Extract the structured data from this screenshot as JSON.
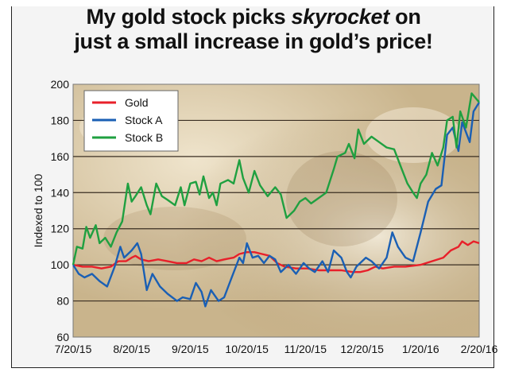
{
  "chart_data": {
    "type": "line",
    "title_line1": "My gold stock picks",
    "title_em": "skyrocket",
    "title_line1_end": "on",
    "title_line2": "just a small increase in gold’s price!",
    "xlabel": "",
    "ylabel": "Indexed to 100",
    "ylim": [
      60,
      200
    ],
    "yticks": [
      60,
      80,
      100,
      120,
      140,
      160,
      180,
      200
    ],
    "xticks": [
      {
        "day": 0,
        "label": "7/20/15"
      },
      {
        "day": 31,
        "label": "8/20/15"
      },
      {
        "day": 62,
        "label": "9/20/15"
      },
      {
        "day": 92,
        "label": "10/20/15"
      },
      {
        "day": 123,
        "label": "11/20/15"
      },
      {
        "day": 153,
        "label": "12/20/15"
      },
      {
        "day": 184,
        "label": "1/20/16"
      },
      {
        "day": 215,
        "label": "2/20/16"
      }
    ],
    "xlim_days": [
      0,
      215
    ],
    "grid": true,
    "legend_position": "top-left",
    "series": [
      {
        "name": "Gold",
        "color": "#e8202a",
        "points": [
          [
            0,
            100
          ],
          [
            5,
            99
          ],
          [
            10,
            99
          ],
          [
            15,
            98
          ],
          [
            20,
            99
          ],
          [
            24,
            102
          ],
          [
            28,
            102
          ],
          [
            31,
            104
          ],
          [
            33,
            105
          ],
          [
            36,
            103
          ],
          [
            40,
            102
          ],
          [
            45,
            103
          ],
          [
            50,
            102
          ],
          [
            55,
            101
          ],
          [
            60,
            101
          ],
          [
            64,
            103
          ],
          [
            68,
            102
          ],
          [
            72,
            104
          ],
          [
            76,
            102
          ],
          [
            80,
            103
          ],
          [
            85,
            104
          ],
          [
            88,
            106
          ],
          [
            92,
            107
          ],
          [
            96,
            107
          ],
          [
            100,
            106
          ],
          [
            104,
            105
          ],
          [
            108,
            101
          ],
          [
            112,
            99
          ],
          [
            118,
            98
          ],
          [
            124,
            98
          ],
          [
            130,
            97
          ],
          [
            136,
            97
          ],
          [
            142,
            97
          ],
          [
            148,
            96
          ],
          [
            152,
            96
          ],
          [
            156,
            97
          ],
          [
            160,
            99
          ],
          [
            164,
            98
          ],
          [
            170,
            99
          ],
          [
            176,
            99
          ],
          [
            184,
            100
          ],
          [
            190,
            102
          ],
          [
            196,
            104
          ],
          [
            200,
            108
          ],
          [
            204,
            110
          ],
          [
            206,
            113
          ],
          [
            209,
            111
          ],
          [
            212,
            113
          ],
          [
            215,
            112
          ]
        ]
      },
      {
        "name": "Stock A",
        "color": "#1a5fb4",
        "points": [
          [
            0,
            100
          ],
          [
            3,
            95
          ],
          [
            6,
            93
          ],
          [
            10,
            95
          ],
          [
            14,
            91
          ],
          [
            18,
            88
          ],
          [
            22,
            99
          ],
          [
            25,
            110
          ],
          [
            27,
            104
          ],
          [
            31,
            108
          ],
          [
            34,
            112
          ],
          [
            36,
            106
          ],
          [
            39,
            86
          ],
          [
            42,
            95
          ],
          [
            46,
            88
          ],
          [
            50,
            84
          ],
          [
            55,
            80
          ],
          [
            58,
            82
          ],
          [
            62,
            81
          ],
          [
            65,
            90
          ],
          [
            68,
            85
          ],
          [
            70,
            77
          ],
          [
            73,
            86
          ],
          [
            77,
            80
          ],
          [
            80,
            82
          ],
          [
            84,
            93
          ],
          [
            88,
            104
          ],
          [
            90,
            101
          ],
          [
            92,
            112
          ],
          [
            95,
            104
          ],
          [
            98,
            105
          ],
          [
            101,
            101
          ],
          [
            104,
            105
          ],
          [
            107,
            103
          ],
          [
            110,
            96
          ],
          [
            114,
            100
          ],
          [
            118,
            95
          ],
          [
            122,
            101
          ],
          [
            125,
            98
          ],
          [
            128,
            96
          ],
          [
            132,
            102
          ],
          [
            135,
            96
          ],
          [
            138,
            108
          ],
          [
            142,
            104
          ],
          [
            145,
            96
          ],
          [
            147,
            93
          ],
          [
            150,
            99
          ],
          [
            155,
            104
          ],
          [
            158,
            102
          ],
          [
            162,
            98
          ],
          [
            166,
            104
          ],
          [
            169,
            118
          ],
          [
            172,
            110
          ],
          [
            176,
            104
          ],
          [
            180,
            102
          ],
          [
            184,
            118
          ],
          [
            188,
            135
          ],
          [
            192,
            142
          ],
          [
            195,
            144
          ],
          [
            198,
            172
          ],
          [
            201,
            176
          ],
          [
            204,
            163
          ],
          [
            206,
            179
          ],
          [
            210,
            168
          ],
          [
            212,
            185
          ],
          [
            215,
            190
          ]
        ]
      },
      {
        "name": "Stock B",
        "color": "#1fa040",
        "points": [
          [
            0,
            100
          ],
          [
            2,
            110
          ],
          [
            5,
            109
          ],
          [
            7,
            121
          ],
          [
            9,
            115
          ],
          [
            12,
            122
          ],
          [
            14,
            112
          ],
          [
            17,
            115
          ],
          [
            20,
            110
          ],
          [
            23,
            118
          ],
          [
            26,
            124
          ],
          [
            29,
            145
          ],
          [
            31,
            135
          ],
          [
            33,
            138
          ],
          [
            36,
            143
          ],
          [
            39,
            133
          ],
          [
            41,
            128
          ],
          [
            44,
            145
          ],
          [
            47,
            138
          ],
          [
            50,
            136
          ],
          [
            54,
            133
          ],
          [
            57,
            143
          ],
          [
            59,
            133
          ],
          [
            62,
            145
          ],
          [
            65,
            146
          ],
          [
            67,
            139
          ],
          [
            69,
            149
          ],
          [
            72,
            137
          ],
          [
            74,
            140
          ],
          [
            76,
            133
          ],
          [
            78,
            145
          ],
          [
            82,
            147
          ],
          [
            85,
            145
          ],
          [
            88,
            158
          ],
          [
            90,
            148
          ],
          [
            93,
            140
          ],
          [
            96,
            152
          ],
          [
            99,
            144
          ],
          [
            103,
            138
          ],
          [
            107,
            143
          ],
          [
            110,
            139
          ],
          [
            113,
            126
          ],
          [
            117,
            130
          ],
          [
            120,
            135
          ],
          [
            123,
            137
          ],
          [
            126,
            134
          ],
          [
            130,
            137
          ],
          [
            134,
            140
          ],
          [
            138,
            153
          ],
          [
            140,
            160
          ],
          [
            144,
            162
          ],
          [
            146,
            167
          ],
          [
            149,
            159
          ],
          [
            151,
            175
          ],
          [
            154,
            167
          ],
          [
            158,
            171
          ],
          [
            162,
            168
          ],
          [
            166,
            165
          ],
          [
            170,
            164
          ],
          [
            174,
            153
          ],
          [
            177,
            145
          ],
          [
            180,
            140
          ],
          [
            182,
            137
          ],
          [
            184,
            145
          ],
          [
            187,
            150
          ],
          [
            190,
            162
          ],
          [
            193,
            155
          ],
          [
            196,
            165
          ],
          [
            198,
            180
          ],
          [
            201,
            182
          ],
          [
            203,
            165
          ],
          [
            205,
            185
          ],
          [
            208,
            176
          ],
          [
            211,
            195
          ],
          [
            215,
            190
          ]
        ]
      }
    ]
  }
}
